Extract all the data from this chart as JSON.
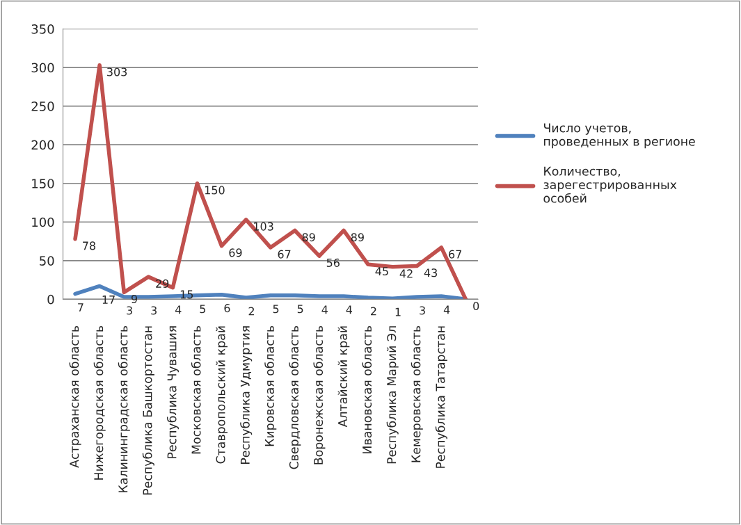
{
  "chart_data": {
    "type": "line",
    "categories": [
      "Астраханская область",
      "Нижегородская область",
      "Калининградская область",
      "Республика Башкортостан",
      "Республика Чувашия",
      "Московская область",
      "Ставропольский край",
      "Республика Удмуртия",
      "Кировская область",
      "Свердловская область",
      "Воронежская область",
      "Алтайский край",
      "Ивановская область",
      "Республика Марий Эл",
      "Кемеровская область",
      "Республика Татарстан",
      null
    ],
    "series": [
      {
        "name": "Число учетов, проведенных в регионе",
        "color": "#4f81bd",
        "values": [
          7,
          17,
          3,
          3,
          4,
          5,
          6,
          2,
          5,
          5,
          4,
          4,
          2,
          1,
          3,
          4,
          0
        ],
        "value_labels": [
          "7",
          "17",
          "3",
          "3",
          "4",
          "5",
          "6",
          "2",
          "5",
          "5",
          "4",
          "4",
          "2",
          "1",
          "3",
          "4",
          null
        ]
      },
      {
        "name": "Количество, зарегестрированных особей",
        "color": "#c0504d",
        "values": [
          78,
          303,
          9,
          29,
          15,
          150,
          69,
          103,
          67,
          89,
          56,
          89,
          45,
          42,
          43,
          67,
          0
        ],
        "value_labels": [
          "78",
          "303",
          "9",
          "29",
          "15",
          "150",
          "69",
          "103",
          "67",
          "89",
          "56",
          "89",
          "45",
          "42",
          "43",
          "67",
          "0"
        ]
      }
    ],
    "ylim": [
      0,
      350
    ],
    "yticks": [
      0,
      50,
      100,
      150,
      200,
      250,
      300,
      350
    ],
    "grid": "y",
    "legend": "right",
    "marker": "none",
    "line_style": "solid"
  }
}
